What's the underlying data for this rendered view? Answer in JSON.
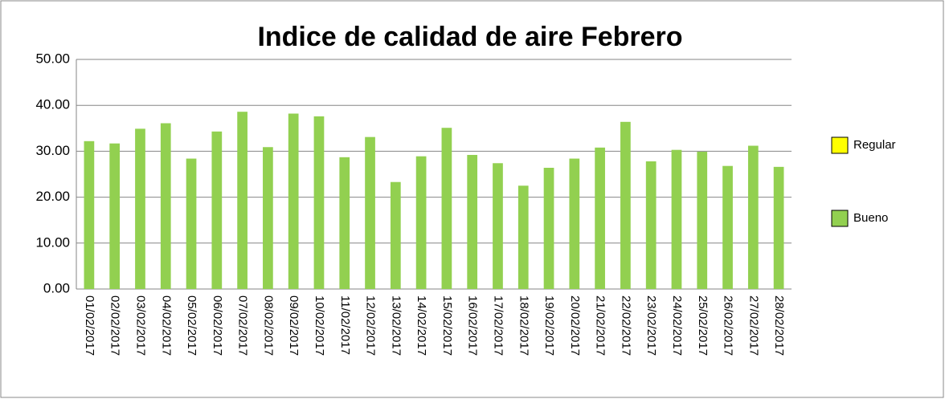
{
  "chart_data": {
    "type": "bar",
    "title": "Indice de calidad de aire Febrero",
    "categories": [
      "01/02/2017",
      "02/02/2017",
      "03/02/2017",
      "04/02/2017",
      "05/02/2017",
      "06/02/2017",
      "07/02/2017",
      "08/02/2017",
      "09/02/2017",
      "10/02/2017",
      "11/02/2017",
      "12/02/2017",
      "13/02/2017",
      "14/02/2017",
      "15/02/2017",
      "16/02/2017",
      "17/02/2017",
      "18/02/2017",
      "19/02/2017",
      "20/02/2017",
      "21/02/2017",
      "22/02/2017",
      "23/02/2017",
      "24/02/2017",
      "25/02/2017",
      "26/02/2017",
      "27/02/2017",
      "28/02/2017"
    ],
    "series": [
      {
        "name": "Regular",
        "color": "#ffff00",
        "values": [
          null,
          null,
          null,
          null,
          null,
          null,
          null,
          null,
          null,
          null,
          null,
          null,
          null,
          null,
          null,
          null,
          null,
          null,
          null,
          null,
          null,
          null,
          null,
          null,
          null,
          null,
          null,
          null
        ]
      },
      {
        "name": "Bueno",
        "color": "#92d050",
        "values": [
          32.2,
          31.7,
          34.9,
          36.1,
          28.4,
          34.3,
          38.6,
          30.9,
          38.2,
          37.6,
          28.7,
          33.1,
          23.3,
          28.9,
          35.1,
          29.2,
          27.4,
          22.5,
          26.4,
          28.4,
          30.8,
          36.4,
          27.8,
          30.3,
          29.9,
          26.8,
          31.2,
          26.6
        ]
      }
    ],
    "ylim": [
      0,
      50
    ],
    "yticks": [
      {
        "value": 0,
        "label": "0.00"
      },
      {
        "value": 10,
        "label": "10.00"
      },
      {
        "value": 20,
        "label": "20.00"
      },
      {
        "value": 30,
        "label": "30.00"
      },
      {
        "value": 40,
        "label": "40.00"
      },
      {
        "value": 50,
        "label": "50.00"
      }
    ],
    "grid": true,
    "legend": "right"
  }
}
